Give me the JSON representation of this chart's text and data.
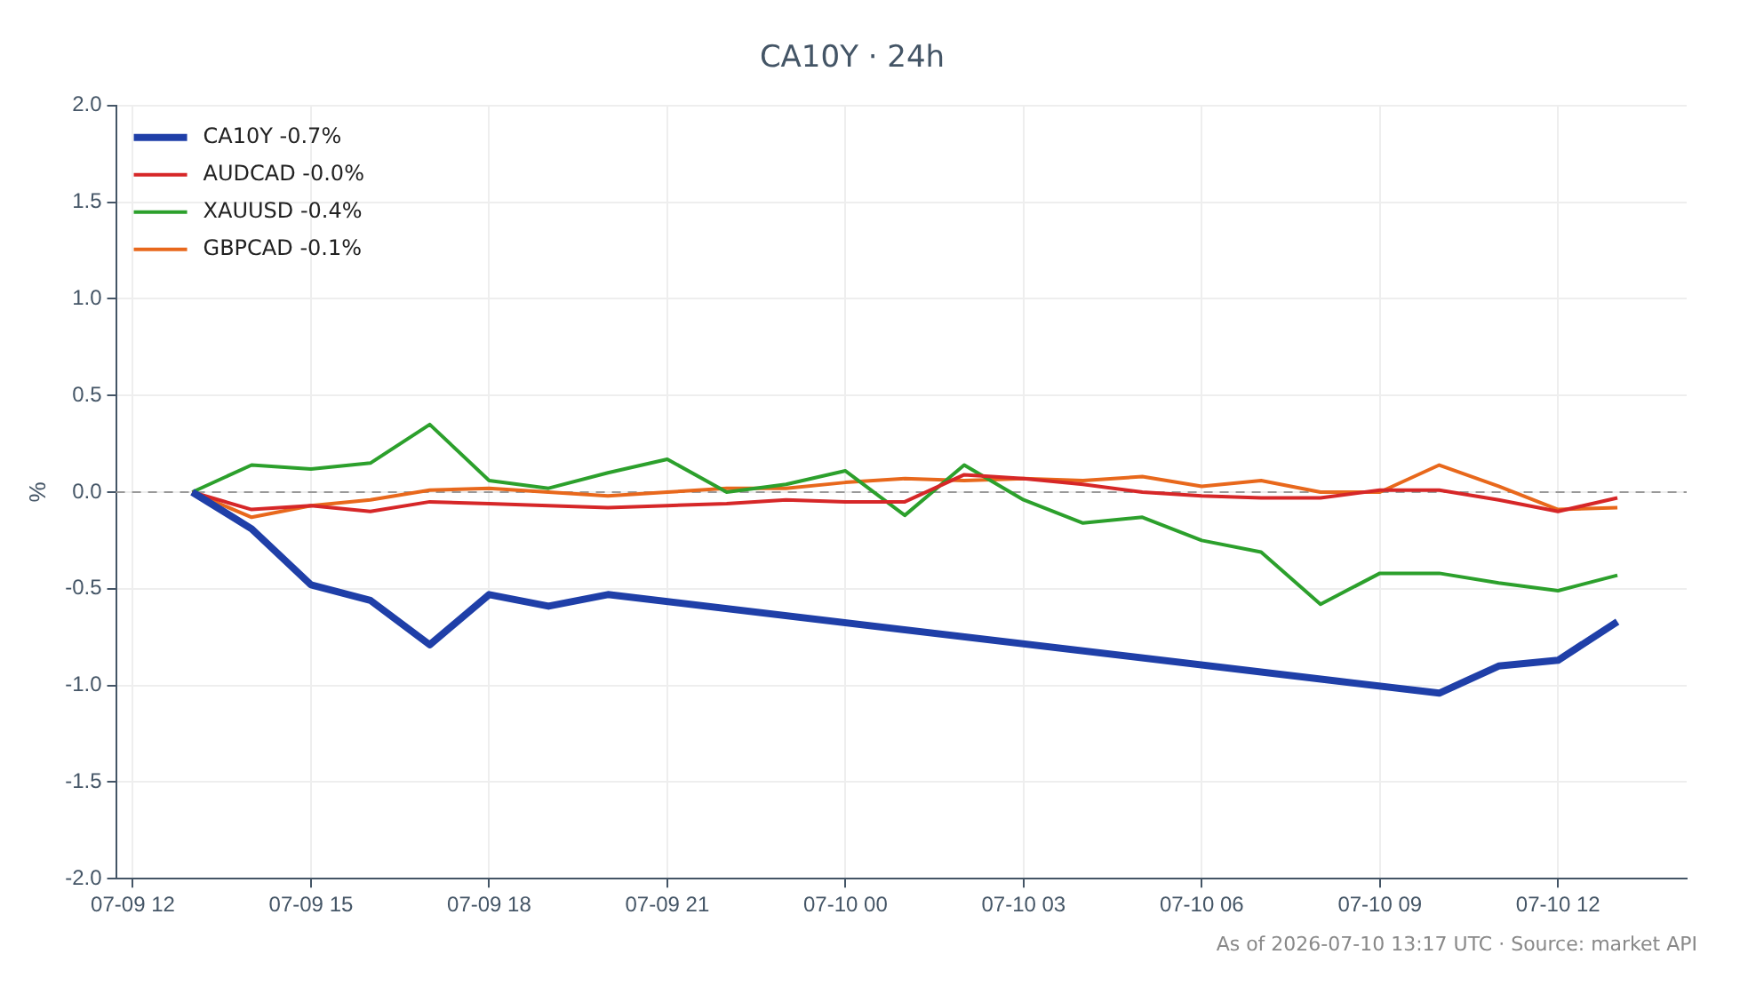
{
  "chart_data": {
    "type": "line",
    "title": "CA10Y · 24h",
    "ylabel": "%",
    "x": [
      "2026-07-09T13:00",
      "2026-07-09T14:00",
      "2026-07-09T15:00",
      "2026-07-09T16:00",
      "2026-07-09T17:00",
      "2026-07-09T18:00",
      "2026-07-09T19:00",
      "2026-07-09T20:00",
      "2026-07-09T21:00",
      "2026-07-09T22:00",
      "2026-07-09T23:00",
      "2026-07-10T00:00",
      "2026-07-10T01:00",
      "2026-07-10T02:00",
      "2026-07-10T03:00",
      "2026-07-10T04:00",
      "2026-07-10T05:00",
      "2026-07-10T06:00",
      "2026-07-10T07:00",
      "2026-07-10T08:00",
      "2026-07-10T09:00",
      "2026-07-10T10:00",
      "2026-07-10T11:00",
      "2026-07-10T12:00",
      "2026-07-10T13:00"
    ],
    "series": [
      {
        "name": "CA10Y -0.7%",
        "color": "#1f3fa8",
        "x": [
          "2026-07-09T13:00",
          "2026-07-09T14:00",
          "2026-07-09T15:00",
          "2026-07-09T16:00",
          "2026-07-09T17:00",
          "2026-07-09T18:00",
          "2026-07-09T19:00",
          "2026-07-09T20:00",
          "2026-07-10T10:00",
          "2026-07-10T11:00",
          "2026-07-10T12:00",
          "2026-07-10T13:00"
        ],
        "values": [
          0,
          -0.19,
          -0.48,
          -0.56,
          -0.79,
          -0.53,
          -0.59,
          -0.53,
          -1.04,
          -0.9,
          -0.87,
          -0.67
        ]
      },
      {
        "name": "AUDCAD -0.0%",
        "color": "#d62728",
        "values": [
          0,
          -0.09,
          -0.07,
          -0.1,
          -0.05,
          -0.06,
          -0.07,
          -0.08,
          -0.07,
          -0.06,
          -0.04,
          -0.05,
          -0.05,
          0.09,
          0.07,
          0.04,
          0,
          -0.02,
          -0.03,
          -0.03,
          0.01,
          0.01,
          -0.04,
          -0.1,
          -0.03
        ]
      },
      {
        "name": "XAUUSD -0.4%",
        "color": "#2ca02c",
        "values": [
          0,
          0.14,
          0.12,
          0.15,
          0.35,
          0.06,
          0.02,
          0.1,
          0.17,
          0,
          0.04,
          0.11,
          -0.12,
          0.14,
          -0.04,
          -0.16,
          -0.13,
          -0.25,
          -0.31,
          -0.58,
          -0.42,
          -0.42,
          -0.47,
          -0.51,
          -0.43
        ]
      },
      {
        "name": "GBPCAD -0.1%",
        "color": "#e8681c",
        "values": [
          0,
          -0.13,
          -0.07,
          -0.04,
          0.01,
          0.02,
          0,
          -0.02,
          0,
          0.02,
          0.02,
          0.05,
          0.07,
          0.06,
          0.07,
          0.06,
          0.08,
          0.03,
          0.06,
          0,
          0,
          0.14,
          0.03,
          -0.09,
          -0.08
        ]
      }
    ],
    "xlim": [
      "2026-07-09T11:43",
      "2026-07-10T14:10"
    ],
    "xticks": [
      {
        "value": "2026-07-09T12:00",
        "label": "07-09 12"
      },
      {
        "value": "2026-07-09T15:00",
        "label": "07-09 15"
      },
      {
        "value": "2026-07-09T18:00",
        "label": "07-09 18"
      },
      {
        "value": "2026-07-09T21:00",
        "label": "07-09 21"
      },
      {
        "value": "2026-07-10T00:00",
        "label": "07-10 00"
      },
      {
        "value": "2026-07-10T03:00",
        "label": "07-10 03"
      },
      {
        "value": "2026-07-10T06:00",
        "label": "07-10 06"
      },
      {
        "value": "2026-07-10T09:00",
        "label": "07-10 09"
      },
      {
        "value": "2026-07-10T12:00",
        "label": "07-10 12"
      }
    ],
    "ylim": [
      -2,
      2
    ],
    "yticks": [
      {
        "value": -2,
        "label": "-2.0"
      },
      -1.5,
      {
        "value": -1,
        "label": "-1.0"
      },
      -0.5,
      {
        "value": 0,
        "label": "0.0"
      },
      0.5,
      {
        "value": 1,
        "label": "1.0"
      },
      1.5,
      {
        "value": 2,
        "label": "2.0"
      }
    ],
    "ref_lines": [
      {
        "axis": "y",
        "value": 0,
        "color": "#999999",
        "line_style": "dashed"
      }
    ],
    "grid": true,
    "legend": "top left",
    "line_style": "solid",
    "marker": "none",
    "annotations": [
      "As of 2026-07-10 13:17 UTC · Source: market API"
    ]
  }
}
